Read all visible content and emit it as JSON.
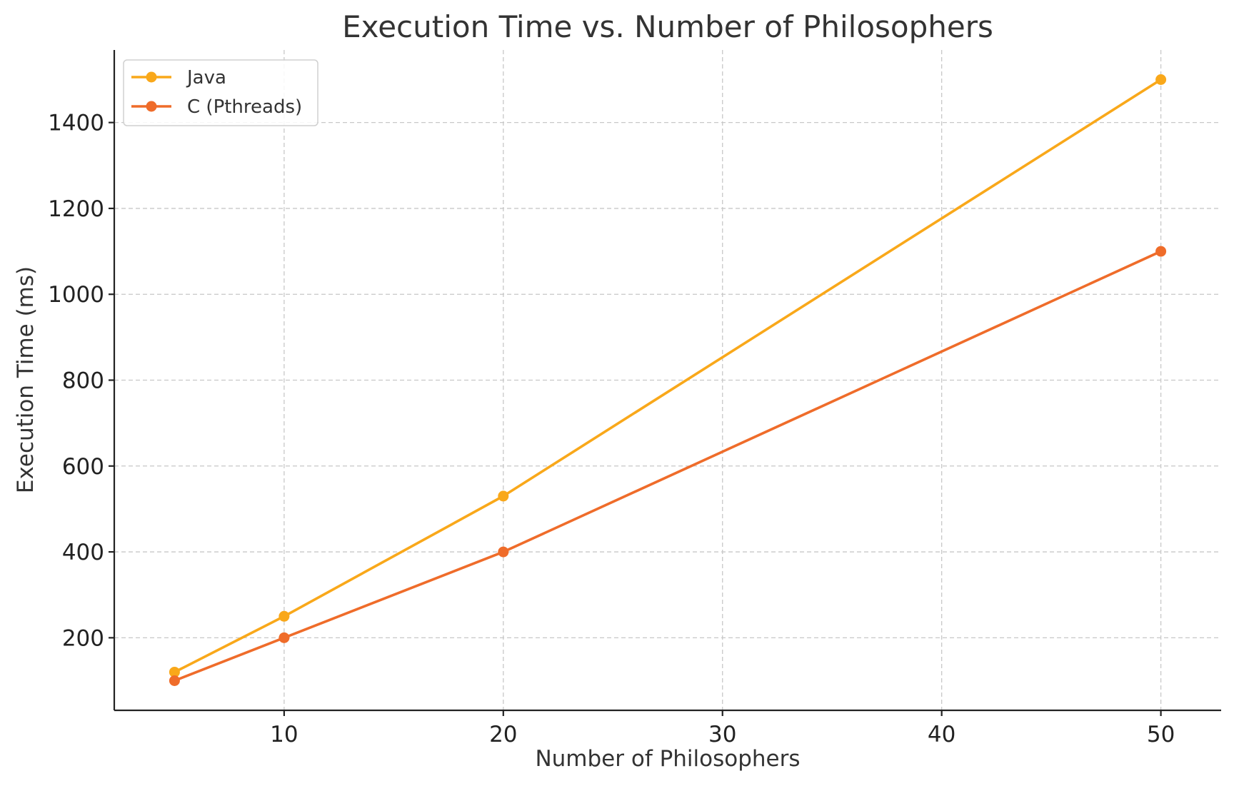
{
  "chart_data": {
    "type": "line",
    "title": "Execution Time vs. Number of Philosophers",
    "xlabel": "Number of Philosophers",
    "ylabel": "Execution Time (ms)",
    "x": [
      5,
      10,
      20,
      50
    ],
    "xlim": [
      2.25,
      52.75
    ],
    "ylim": [
      31,
      1569
    ],
    "xticks": [
      10,
      20,
      30,
      40,
      50
    ],
    "yticks": [
      200,
      400,
      600,
      800,
      1000,
      1200,
      1400
    ],
    "grid": true,
    "legend_position": "top-left",
    "series": [
      {
        "name": "Java",
        "color": "#F9A81A",
        "values": [
          120,
          250,
          530,
          1500
        ]
      },
      {
        "name": "C (Pthreads)",
        "color": "#EF6C2A",
        "values": [
          100,
          200,
          400,
          1100
        ]
      }
    ]
  }
}
